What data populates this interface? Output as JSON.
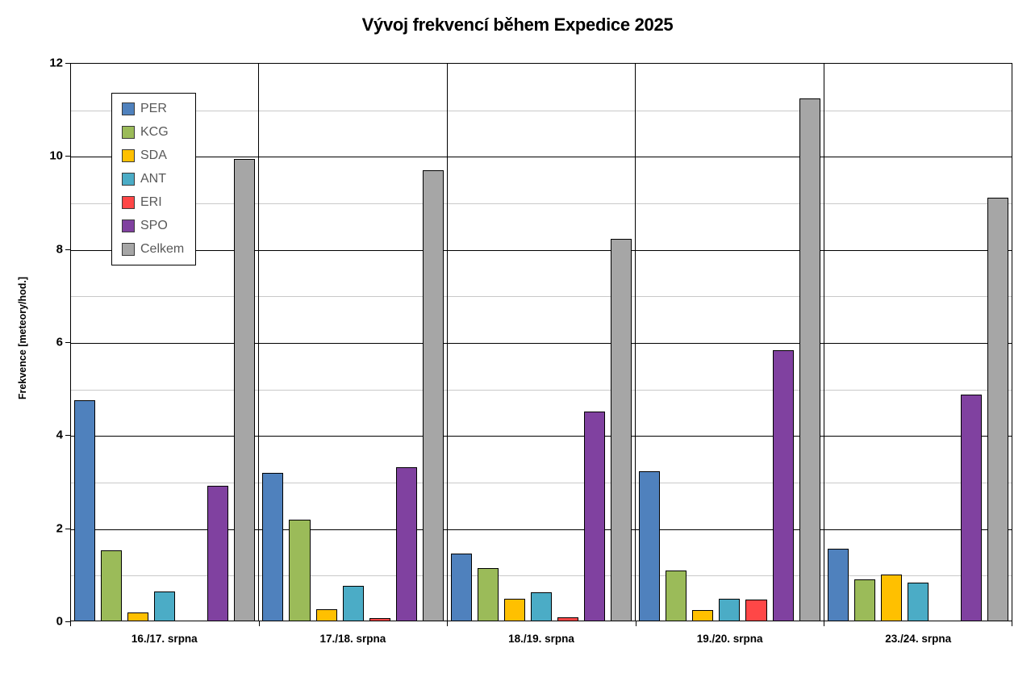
{
  "title": "Vývoj frekvencí během Expedice 2025",
  "chart_data": {
    "type": "bar",
    "title": "Vývoj frekvencí během Expedice 2025",
    "xlabel": "",
    "ylabel": "Frekvence [meteory/hod.]",
    "categories": [
      "16./17. srpna",
      "17./18. srpna",
      "18./19. srpna",
      "19./20. srpna",
      "23./24. srpna"
    ],
    "series": [
      {
        "name": "PER",
        "color": "#4F81BD",
        "values": [
          4.74,
          3.19,
          1.45,
          3.21,
          1.54
        ]
      },
      {
        "name": "KCG",
        "color": "#9BBB59",
        "values": [
          1.51,
          2.18,
          1.13,
          1.07,
          0.88
        ]
      },
      {
        "name": "SDA",
        "color": "#FFC000",
        "values": [
          0.17,
          0.24,
          0.47,
          0.22,
          0.99
        ]
      },
      {
        "name": "ANT",
        "color": "#4BACC6",
        "values": [
          0.62,
          0.75,
          0.61,
          0.47,
          0.82
        ]
      },
      {
        "name": "ERI",
        "color": "#FF4747",
        "values": [
          0,
          0.05,
          0.07,
          0.45,
          0
        ]
      },
      {
        "name": "SPO",
        "color": "#8041A0",
        "values": [
          2.9,
          3.31,
          4.5,
          5.83,
          4.87
        ]
      },
      {
        "name": "Celkem",
        "color": "#A6A6A6",
        "values": [
          9.95,
          9.7,
          8.22,
          11.25,
          9.12
        ]
      }
    ],
    "ylim": [
      0,
      12
    ],
    "y_major_step": 2,
    "y_minor_step": 1,
    "y_tick_labels": [
      "0",
      "2",
      "4",
      "6",
      "8",
      "10",
      "12"
    ],
    "grid": true,
    "legend_position": "upper-left-inside",
    "legend_entries": [
      "PER",
      "KCG",
      "SDA",
      "ANT",
      "ERI",
      "SPO",
      "Celkem"
    ],
    "grid_minor_color": "#C9C9C9",
    "grid_major_color": "#000000",
    "bar_border_color": "#000000",
    "legend_text_color": "#595959"
  }
}
